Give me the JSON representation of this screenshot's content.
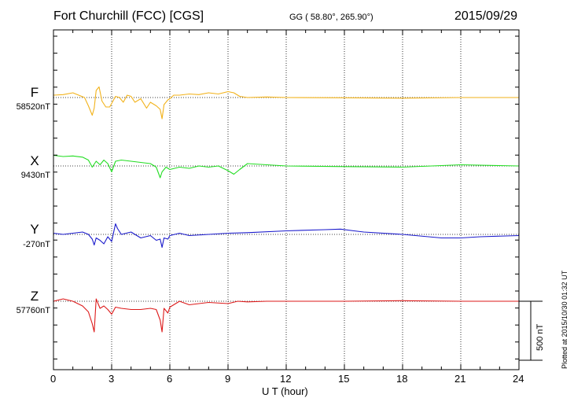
{
  "header": {
    "station": "Fort Churchill (FCC)  [CGS]",
    "coords": "GG ( 58.80°, 265.90°)",
    "date": "2015/09/29"
  },
  "footer": {
    "plotted": "Plotted at 2015/10/30 01:32 UT"
  },
  "scale": {
    "label": "500 nT",
    "value_nT": 500
  },
  "colors": {
    "F": "#f2b21a",
    "X": "#22dd22",
    "Y": "#1a1acc",
    "Z": "#dd1a1a"
  },
  "chart_data": {
    "type": "line",
    "xlabel": "U T (hour)",
    "xlim": [
      0,
      24
    ],
    "xticks": [
      "0",
      "3",
      "6",
      "9",
      "12",
      "15",
      "18",
      "21",
      "24"
    ],
    "grid": true,
    "series": [
      {
        "name": "F",
        "baseline_label": "58520nT",
        "baseline_nT": 58520,
        "x": [
          0,
          0.5,
          1.0,
          1.3,
          1.6,
          1.8,
          2.0,
          2.1,
          2.2,
          2.35,
          2.5,
          2.7,
          2.9,
          3.0,
          3.2,
          3.4,
          3.6,
          3.8,
          4.0,
          4.2,
          4.5,
          4.8,
          5.0,
          5.3,
          5.5,
          5.6,
          5.7,
          5.9,
          6.0,
          6.2,
          6.5,
          7.0,
          7.5,
          8.0,
          8.5,
          9.0,
          9.3,
          9.6,
          10,
          11,
          12,
          15,
          18,
          21,
          24
        ],
        "values": [
          58540,
          58545,
          58560,
          58540,
          58520,
          58450,
          58370,
          58430,
          58580,
          58610,
          58490,
          58440,
          58440,
          58470,
          58530,
          58520,
          58480,
          58540,
          58530,
          58480,
          58510,
          58430,
          58480,
          58450,
          58420,
          58340,
          58460,
          58500,
          58510,
          58540,
          58540,
          58550,
          58545,
          58560,
          58550,
          58570,
          58560,
          58530,
          58520,
          58525,
          58520,
          58518,
          58515,
          58520,
          58520
        ]
      },
      {
        "name": "X",
        "baseline_label": "9430nT",
        "baseline_nT": 9430,
        "x": [
          0,
          0.5,
          1.0,
          1.5,
          1.8,
          2.0,
          2.2,
          2.4,
          2.6,
          2.8,
          3.0,
          3.2,
          3.5,
          4.0,
          4.5,
          5.0,
          5.3,
          5.5,
          5.6,
          5.8,
          6.0,
          6.5,
          7.0,
          7.5,
          8.0,
          8.5,
          9.0,
          9.3,
          9.6,
          10,
          11,
          12,
          15,
          18,
          21,
          24
        ],
        "values": [
          9520,
          9510,
          9515,
          9505,
          9480,
          9420,
          9470,
          9440,
          9480,
          9450,
          9380,
          9470,
          9480,
          9470,
          9460,
          9450,
          9420,
          9330,
          9380,
          9420,
          9400,
          9420,
          9410,
          9430,
          9420,
          9430,
          9390,
          9360,
          9400,
          9450,
          9440,
          9430,
          9425,
          9420,
          9440,
          9430
        ]
      },
      {
        "name": "Y",
        "baseline_label": "-270nT",
        "baseline_nT": -270,
        "x": [
          0,
          0.5,
          1.0,
          1.5,
          1.8,
          2.0,
          2.1,
          2.2,
          2.4,
          2.6,
          2.8,
          3.0,
          3.2,
          3.3,
          3.5,
          4.0,
          4.5,
          5.0,
          5.3,
          5.5,
          5.6,
          5.7,
          5.9,
          6.0,
          6.5,
          7.0,
          8.0,
          9.0,
          10,
          12,
          14,
          14.8,
          15.5,
          16,
          18,
          20,
          21,
          22,
          24
        ],
        "values": [
          -260,
          -270,
          -260,
          -250,
          -270,
          -310,
          -360,
          -300,
          -320,
          -350,
          -290,
          -330,
          -180,
          -220,
          -270,
          -250,
          -300,
          -280,
          -320,
          -310,
          -380,
          -300,
          -310,
          -280,
          -260,
          -280,
          -270,
          -260,
          -255,
          -240,
          -230,
          -225,
          -240,
          -250,
          -270,
          -300,
          -300,
          -290,
          -280
        ]
      },
      {
        "name": "Z",
        "baseline_label": "57760nT",
        "baseline_nT": 57760,
        "x": [
          0,
          0.5,
          1.0,
          1.5,
          1.8,
          2.0,
          2.1,
          2.2,
          2.4,
          2.6,
          2.8,
          3.0,
          3.2,
          3.5,
          4.0,
          4.5,
          5.0,
          5.3,
          5.5,
          5.6,
          5.7,
          5.9,
          6.0,
          6.5,
          7.0,
          8.0,
          9.0,
          9.5,
          10,
          11,
          12,
          15,
          18,
          21,
          24
        ],
        "values": [
          57760,
          57780,
          57760,
          57720,
          57670,
          57570,
          57500,
          57780,
          57700,
          57720,
          57690,
          57650,
          57710,
          57700,
          57690,
          57690,
          57700,
          57690,
          57600,
          57500,
          57700,
          57660,
          57710,
          57760,
          57730,
          57750,
          57740,
          57760,
          57755,
          57760,
          57760,
          57760,
          57765,
          57760,
          57760
        ]
      }
    ]
  }
}
